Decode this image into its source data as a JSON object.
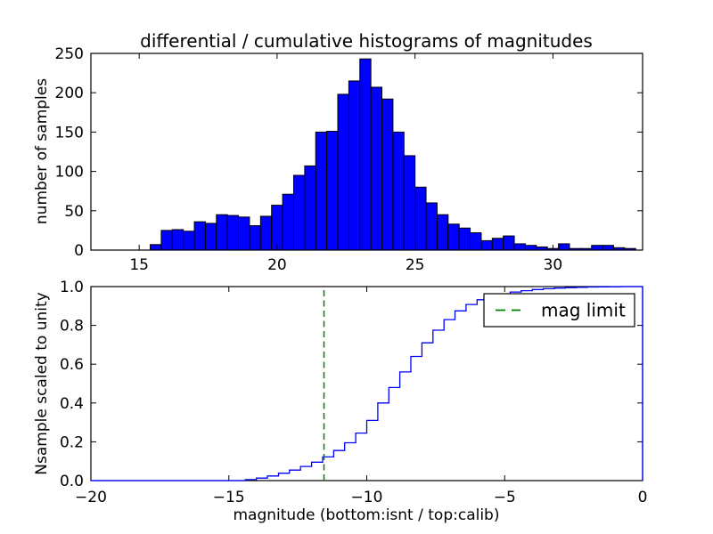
{
  "figure": {
    "title": "differential / cumulative histograms of magnitudes",
    "background": "#ffffff",
    "frame_color": "#000000"
  },
  "chart_data": [
    {
      "type": "bar",
      "name": "differential-histogram-top",
      "ylabel": "number of samples",
      "xlim": [
        13.25,
        33.25
      ],
      "ylim": [
        0,
        250
      ],
      "xticks": [
        15,
        20,
        25,
        30
      ],
      "xtick_labels": [
        "15",
        "20",
        "25",
        "30"
      ],
      "yticks": [
        0,
        50,
        100,
        150,
        200,
        250
      ],
      "ytick_labels": [
        "0",
        "50",
        "100",
        "150",
        "200",
        "250"
      ],
      "grid": false,
      "bin_start": 13.0,
      "bin_width": 0.4,
      "counts": [
        0,
        0,
        0,
        0,
        0,
        0,
        7,
        25,
        26,
        24,
        36,
        34,
        45,
        44,
        42,
        31,
        43,
        57,
        71,
        95,
        107,
        150,
        151,
        198,
        215,
        243,
        207,
        192,
        150,
        120,
        80,
        60,
        45,
        33,
        28,
        22,
        12,
        15,
        18,
        8,
        6,
        4,
        2,
        8,
        2,
        2,
        6,
        6,
        3,
        2
      ],
      "bar_color": "#0000ff",
      "bar_edge_color": "#000000"
    },
    {
      "type": "line",
      "style": "step-cumulative",
      "name": "cumulative-histogram-bottom",
      "xlabel": "magnitude (bottom:isnt / top:calib)",
      "ylabel": "Nsample scaled to unity",
      "xlim": [
        -20,
        0
      ],
      "ylim": [
        0.0,
        1.0
      ],
      "xticks": [
        -20,
        -15,
        -10,
        -5,
        0
      ],
      "xtick_labels": [
        "−20",
        "−15",
        "−10",
        "−5",
        "0"
      ],
      "yticks": [
        0.0,
        0.2,
        0.4,
        0.6,
        0.8,
        1.0
      ],
      "ytick_labels": [
        "0.0",
        "0.2",
        "0.4",
        "0.6",
        "0.8",
        "1.0"
      ],
      "grid": false,
      "bin_start": -20,
      "bin_width": 0.4,
      "cumulative": [
        0,
        0,
        0,
        0,
        0,
        0,
        0,
        0,
        0,
        0,
        0,
        0,
        0,
        0,
        0.005,
        0.013,
        0.024,
        0.038,
        0.054,
        0.073,
        0.095,
        0.122,
        0.155,
        0.195,
        0.245,
        0.31,
        0.4,
        0.48,
        0.56,
        0.64,
        0.71,
        0.775,
        0.83,
        0.875,
        0.908,
        0.932,
        0.95,
        0.962,
        0.972,
        0.979,
        0.985,
        0.989,
        0.992,
        0.9945,
        0.996,
        0.9975,
        0.9985,
        0.999,
        1.0,
        1.0
      ],
      "line_color": "#0000ff",
      "mag_limit": {
        "x": -11.55,
        "color": "#008000",
        "linestyle": "dashed",
        "legend_label": "mag limit"
      },
      "legend_position": "upper right"
    }
  ]
}
